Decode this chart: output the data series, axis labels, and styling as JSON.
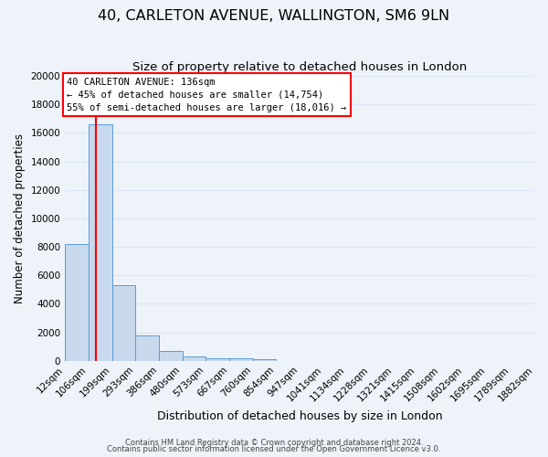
{
  "title": "40, CARLETON AVENUE, WALLINGTON, SM6 9LN",
  "subtitle": "Size of property relative to detached houses in London",
  "xlabel": "Distribution of detached houses by size in London",
  "ylabel": "Number of detached properties",
  "bar_values": [
    8200,
    16600,
    5300,
    1800,
    700,
    300,
    200,
    150,
    100,
    0,
    0,
    0,
    0,
    0,
    0,
    0,
    0,
    0,
    0,
    0
  ],
  "n_bins": 20,
  "bin_labels": [
    "12sqm",
    "106sqm",
    "199sqm",
    "293sqm",
    "386sqm",
    "480sqm",
    "573sqm",
    "667sqm",
    "760sqm",
    "854sqm",
    "947sqm",
    "1041sqm",
    "1134sqm",
    "1228sqm",
    "1321sqm",
    "1415sqm",
    "1508sqm",
    "1602sqm",
    "1695sqm",
    "1789sqm",
    "1882sqm"
  ],
  "bar_color": "#c8d9ed",
  "bar_edge_color": "#5b9bd5",
  "red_line_bin": 1.285,
  "ylim": [
    0,
    20000
  ],
  "yticks": [
    0,
    2000,
    4000,
    6000,
    8000,
    10000,
    12000,
    14000,
    16000,
    18000,
    20000
  ],
  "annotation_title": "40 CARLETON AVENUE: 136sqm",
  "annotation_line1": "← 45% of detached houses are smaller (14,754)",
  "annotation_line2": "55% of semi-detached houses are larger (18,016) →",
  "footer1": "Contains HM Land Registry data © Crown copyright and database right 2024.",
  "footer2": "Contains public sector information licensed under the Open Government Licence v3.0.",
  "background_color": "#eef2f9",
  "grid_color": "#dce6f5",
  "title_fontsize": 11.5,
  "subtitle_fontsize": 9.5,
  "ylabel_fontsize": 8.5,
  "xlabel_fontsize": 9,
  "tick_fontsize": 7.5,
  "ann_fontsize": 7.5,
  "footer_fontsize": 6
}
